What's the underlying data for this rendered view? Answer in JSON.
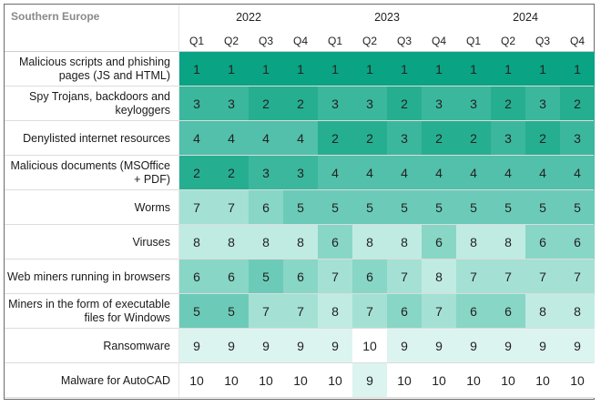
{
  "chart_data": {
    "type": "heatmap",
    "title": "Southern Europe",
    "years": [
      "2022",
      "2023",
      "2024"
    ],
    "quarters": [
      "Q1",
      "Q2",
      "Q3",
      "Q4",
      "Q1",
      "Q2",
      "Q3",
      "Q4",
      "Q1",
      "Q2",
      "Q3",
      "Q4"
    ],
    "rows": [
      {
        "label": "Malicious scripts and phishing pages (JS and HTML)",
        "values": [
          1,
          1,
          1,
          1,
          1,
          1,
          1,
          1,
          1,
          1,
          1,
          1
        ]
      },
      {
        "label": "Spy Trojans, backdoors and keyloggers",
        "values": [
          3,
          3,
          2,
          2,
          3,
          3,
          2,
          3,
          3,
          2,
          3,
          2
        ]
      },
      {
        "label": "Denylisted internet resources",
        "values": [
          4,
          4,
          4,
          4,
          2,
          2,
          3,
          2,
          2,
          3,
          2,
          3
        ]
      },
      {
        "label": "Malicious documents (MSOffice + PDF)",
        "values": [
          2,
          2,
          3,
          3,
          4,
          4,
          4,
          4,
          4,
          4,
          4,
          4
        ]
      },
      {
        "label": "Worms",
        "values": [
          7,
          7,
          6,
          5,
          5,
          5,
          5,
          5,
          5,
          5,
          5,
          5
        ]
      },
      {
        "label": "Viruses",
        "values": [
          8,
          8,
          8,
          8,
          6,
          8,
          8,
          6,
          8,
          8,
          6,
          6
        ]
      },
      {
        "label": "Web miners running in browsers",
        "values": [
          6,
          6,
          5,
          6,
          7,
          6,
          7,
          8,
          7,
          7,
          7,
          7
        ]
      },
      {
        "label": "Miners in the form of executable files for Windows",
        "values": [
          5,
          5,
          7,
          7,
          8,
          7,
          6,
          7,
          6,
          6,
          8,
          8
        ]
      },
      {
        "label": "Ransomware",
        "values": [
          9,
          9,
          9,
          9,
          9,
          10,
          9,
          9,
          9,
          9,
          9,
          9
        ]
      },
      {
        "label": "Malware for AutoCAD",
        "values": [
          10,
          10,
          10,
          10,
          10,
          9,
          10,
          10,
          10,
          10,
          10,
          10
        ]
      }
    ],
    "rank_colors": {
      "1": "#0aa383",
      "2": "#26ae91",
      "3": "#3bb79e",
      "4": "#52c0aa",
      "5": "#6ccbb8",
      "6": "#88d6c6",
      "7": "#a4e1d4",
      "8": "#c0ebe2",
      "9": "#dcf4ef",
      "10": "#ffffff"
    }
  }
}
